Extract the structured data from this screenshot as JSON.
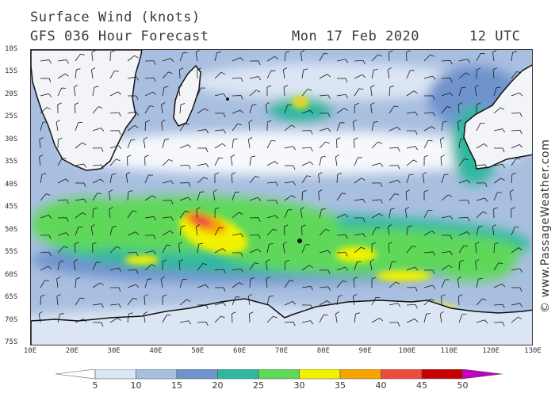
{
  "header": {
    "title": "Surface Wind (knots)",
    "model": "GFS 036 Hour Forecast",
    "date": "Mon 17 Feb 2020",
    "time": "12 UTC"
  },
  "credit": "© www.PassageWeather.com",
  "map": {
    "lat_labels": [
      "10S",
      "15S",
      "20S",
      "25S",
      "30S",
      "35S",
      "40S",
      "45S",
      "50S",
      "55S",
      "60S",
      "65S",
      "70S",
      "75S"
    ],
    "lon_labels": [
      "10E",
      "20E",
      "30E",
      "40E",
      "50E",
      "60E",
      "70E",
      "80E",
      "90E",
      "100E",
      "110E",
      "120E",
      "130E"
    ],
    "lat_range": [
      -10,
      -75
    ],
    "lon_range": [
      10,
      130
    ],
    "land_color": "#f2f4f8",
    "coast_color": "#111111"
  },
  "legend": {
    "units": "knots",
    "bins": [
      {
        "min": 0,
        "max": 5,
        "color": "#ffffff"
      },
      {
        "min": 5,
        "max": 10,
        "color": "#dbe5f4"
      },
      {
        "min": 10,
        "max": 15,
        "color": "#a8bfe0"
      },
      {
        "min": 15,
        "max": 20,
        "color": "#6f93cd"
      },
      {
        "min": 20,
        "max": 25,
        "color": "#2fb7a0"
      },
      {
        "min": 25,
        "max": 30,
        "color": "#5fd85a"
      },
      {
        "min": 30,
        "max": 35,
        "color": "#f2f200"
      },
      {
        "min": 35,
        "max": 40,
        "color": "#f7a300"
      },
      {
        "min": 40,
        "max": 45,
        "color": "#ee4a3b"
      },
      {
        "min": 45,
        "max": 50,
        "color": "#c40000"
      },
      {
        "min": 50,
        "max": 55,
        "color": "#c300c0"
      }
    ],
    "labels": [
      "5",
      "10",
      "15",
      "20",
      "25",
      "30",
      "35",
      "40",
      "45",
      "50"
    ]
  }
}
